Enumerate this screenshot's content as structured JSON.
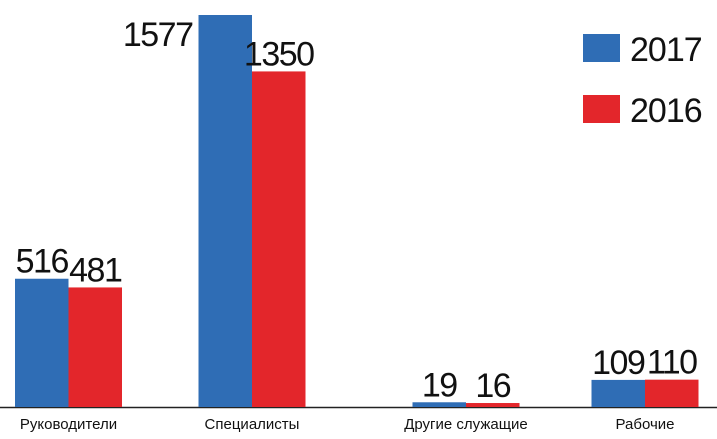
{
  "chart_data": {
    "type": "bar",
    "categories": [
      "Руководители",
      "Специалисты",
      "Другие служащие",
      "Рабочие"
    ],
    "series": [
      {
        "name": "2017",
        "color": "#2f6db5",
        "values": [
          516,
          1577,
          19,
          109
        ]
      },
      {
        "name": "2016",
        "color": "#e3262b",
        "values": [
          481,
          1350,
          16,
          110
        ]
      }
    ],
    "legend": "top-right"
  }
}
